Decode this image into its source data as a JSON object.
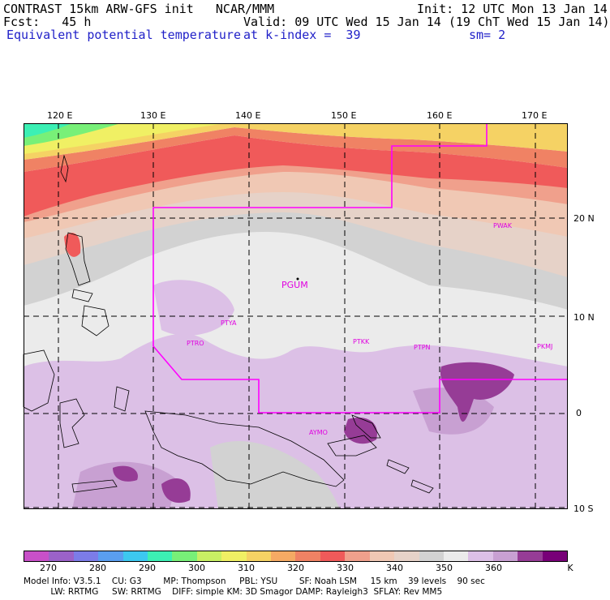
{
  "header": {
    "line1_left": "CONTRAST 15km ARW-GFS init   NCAR/MMM",
    "line1_right": "Init: 12 UTC Mon 13 Jan 14",
    "line2_left": "Fcst:   45 h",
    "line2_right": "Valid: 09 UTC Wed 15 Jan 14 (19 ChT Wed 15 Jan 14)",
    "line3_left": "Equivalent potential temperature",
    "line3_mid": "at k-index =  39",
    "line3_right": "sm= 2"
  },
  "map": {
    "lon_labels": [
      "120 E",
      "130 E",
      "140 E",
      "150 E",
      "160 E",
      "170 E"
    ],
    "lat_labels": [
      "20 N",
      "10 N",
      "0",
      "10 S"
    ],
    "stations": [
      {
        "id": "PGUM",
        "big": true
      },
      {
        "id": "PTYA",
        "big": false
      },
      {
        "id": "PTRO",
        "big": false
      },
      {
        "id": "PTKK",
        "big": false
      },
      {
        "id": "PTPN",
        "big": false
      },
      {
        "id": "PKMJ",
        "big": false
      },
      {
        "id": "PWAK",
        "big": false
      },
      {
        "id": "AYMO",
        "big": false
      }
    ],
    "boundary_color": "#ff00ff"
  },
  "colorbar": {
    "colors": [
      "#c850c8",
      "#9b62c8",
      "#7c7ce8",
      "#5a9ef0",
      "#3cc8f0",
      "#3cf0b4",
      "#78f078",
      "#c8f064",
      "#f0f064",
      "#f5d264",
      "#f5aa64",
      "#f08264",
      "#f05a5a",
      "#f0a08c",
      "#f0c8b4",
      "#e6d2c8",
      "#d2d2d2",
      "#ebebeb",
      "#dcc0e6",
      "#c8a0d2",
      "#963c96",
      "#780078"
    ],
    "ticks": [
      "270",
      "280",
      "290",
      "300",
      "310",
      "320",
      "330",
      "340",
      "350",
      "360"
    ],
    "unit": "K"
  },
  "footer": {
    "line1": "Model Info: V3.5.1    CU: G3        MP: Thompson     PBL: YSU        SF: Noah LSM     15 km    39 levels    90 sec",
    "line2": "          LW: RRTMG     SW: RRTMG    DIFF: simple KM: 3D Smagor DAMP: Rayleigh3  SFLAY: Rev MM5"
  }
}
